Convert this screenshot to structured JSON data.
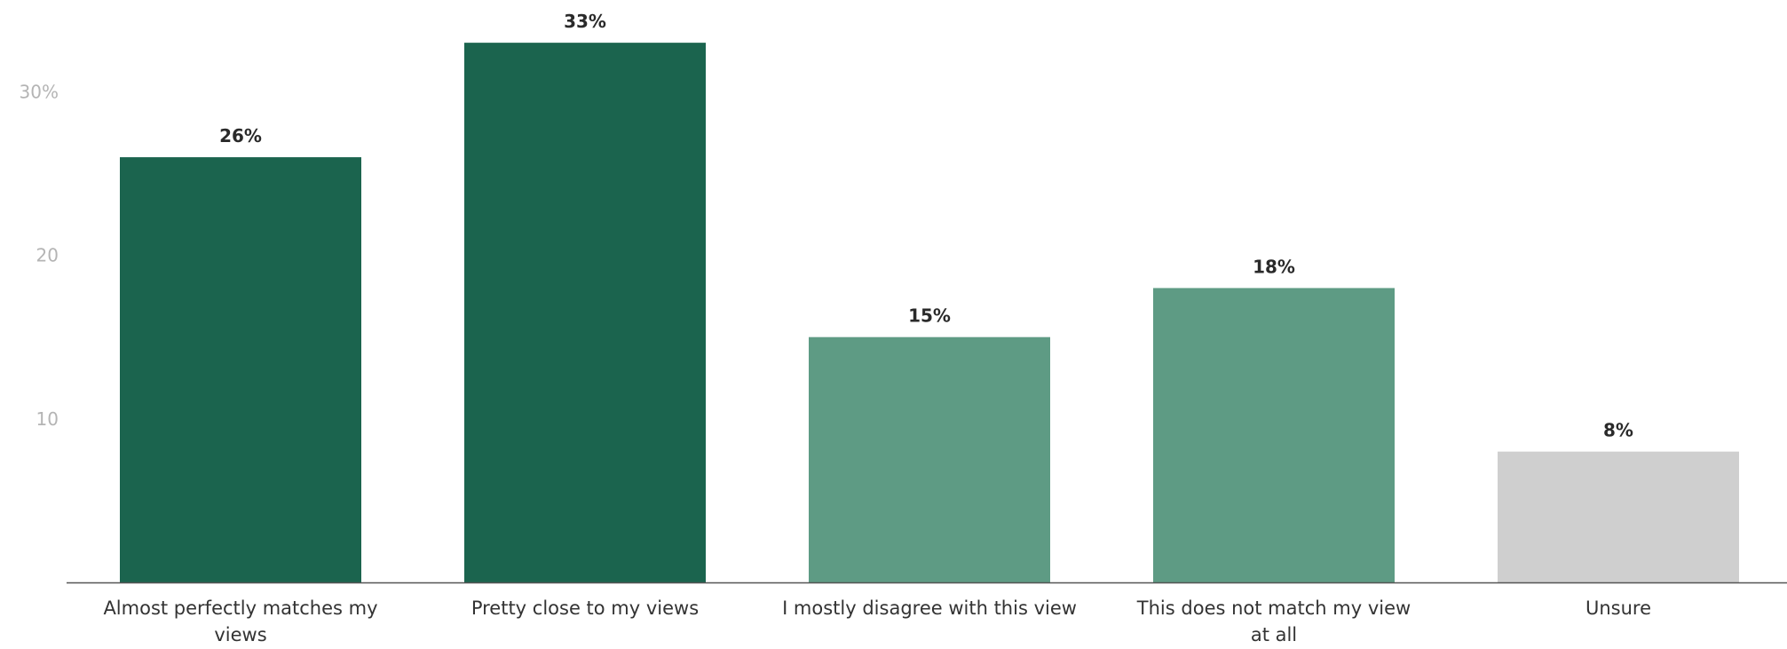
{
  "chart_data": {
    "type": "bar",
    "title": "",
    "xlabel": "",
    "ylabel": "",
    "categories": [
      [
        "Almost perfectly matches my",
        "views"
      ],
      [
        "Pretty close to my views"
      ],
      [
        "I mostly disagree with this view"
      ],
      [
        "This does not match my view",
        "at all"
      ],
      [
        "Unsure"
      ]
    ],
    "values": [
      26,
      33,
      15,
      18,
      8
    ],
    "data_labels": [
      "26%",
      "33%",
      "15%",
      "18%",
      "8%"
    ],
    "colors": [
      "#1b644e",
      "#1b644e",
      "#5e9b84",
      "#5e9b84",
      "#cfcfcf"
    ],
    "ylim": [
      0,
      34
    ],
    "yticks": [
      {
        "value": 10,
        "label": "10"
      },
      {
        "value": 20,
        "label": "20"
      },
      {
        "value": 30,
        "label": "30%"
      }
    ],
    "grid": false,
    "legend": "none"
  }
}
